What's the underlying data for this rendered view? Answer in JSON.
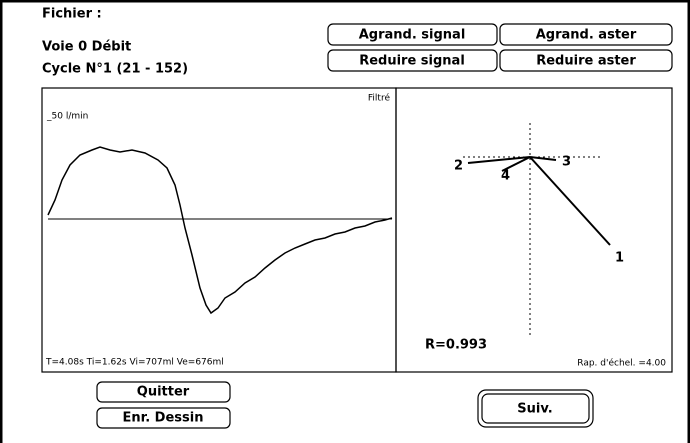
{
  "header": {
    "lines": [
      "Fichier :",
      "Voie 0  Débit",
      "Cycle N°1  (21 - 152)"
    ]
  },
  "buttons": {
    "top": [
      "Agrand. signal",
      "Agrand. aster",
      "Reduire signal",
      "Reduire aster"
    ],
    "bottom": [
      "Quitter",
      "Enr. Dessin"
    ],
    "next": "Suiv."
  },
  "signal_panel": {
    "filter": "Filtré",
    "scale": "_50 l/min",
    "stats": "T=4.08s  Ti=1.62s  Vi=707ml  Ve=676ml"
  },
  "aster_panel": {
    "r": "R=0.993",
    "ratio": "Rap. d'échel. =4.00",
    "labels": [
      "1",
      "2",
      "3",
      "4"
    ]
  }
}
